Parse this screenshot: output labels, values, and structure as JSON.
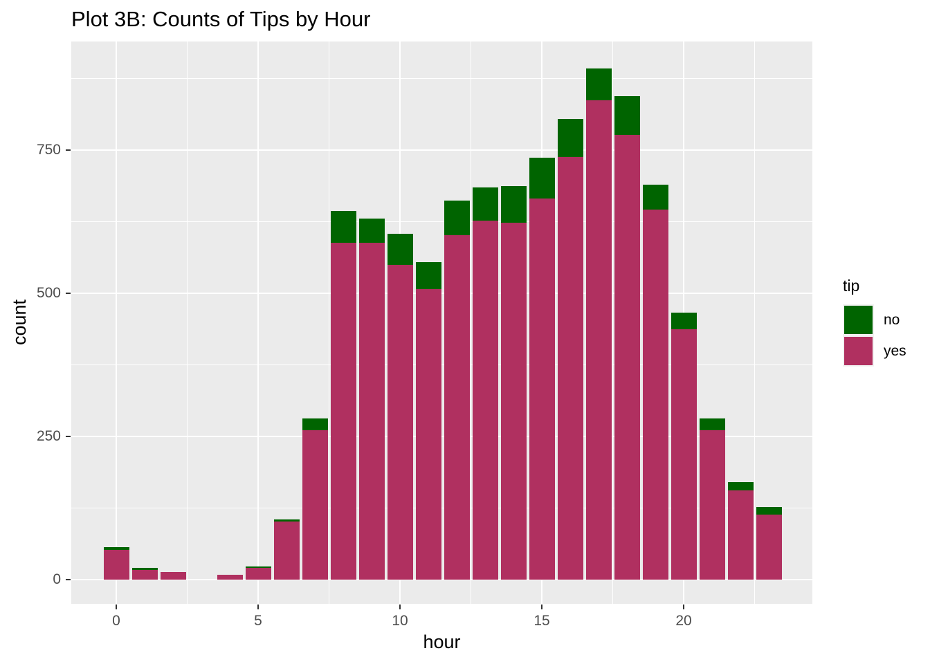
{
  "chart_data": {
    "type": "bar",
    "stacked": true,
    "title": "Plot 3B: Counts of Tips by Hour",
    "xlabel": "hour",
    "ylabel": "count",
    "categories": [
      0,
      1,
      2,
      3,
      4,
      5,
      6,
      7,
      8,
      9,
      10,
      11,
      12,
      13,
      14,
      15,
      16,
      17,
      18,
      19,
      20,
      21,
      22,
      23
    ],
    "series": [
      {
        "name": "yes",
        "color": "#B03060",
        "values": [
          52,
          17,
          13,
          0,
          8,
          21,
          101,
          261,
          588,
          588,
          549,
          507,
          602,
          627,
          623,
          666,
          738,
          837,
          776,
          646,
          437,
          261,
          156,
          114
        ]
      },
      {
        "name": "no",
        "color": "#006400",
        "values": [
          5,
          3,
          0,
          0,
          0,
          2,
          4,
          20,
          56,
          42,
          55,
          47,
          60,
          58,
          64,
          71,
          66,
          56,
          68,
          44,
          29,
          20,
          14,
          13
        ]
      }
    ],
    "totals": [
      57,
      20,
      13,
      0,
      8,
      23,
      105,
      281,
      644,
      630,
      604,
      554,
      662,
      685,
      687,
      737,
      804,
      893,
      844,
      690,
      466,
      281,
      170,
      127
    ],
    "x_ticks": [
      0,
      5,
      10,
      15,
      20
    ],
    "x_minor": [
      2.5,
      7.5,
      12.5,
      17.5,
      22.5
    ],
    "y_ticks": [
      0,
      250,
      500,
      750
    ],
    "y_minor": [
      125,
      375,
      625,
      875
    ],
    "xlim": [
      -1.65,
      24.65
    ],
    "ylim": [
      -42,
      940
    ],
    "grid": true,
    "panel_bg": "#EBEBEB",
    "grid_color": "#FFFFFF",
    "tick_label_color": "#4D4D4D",
    "legend": {
      "title": "tip",
      "position": "right",
      "entries": [
        {
          "label": "no",
          "color": "#006400"
        },
        {
          "label": "yes",
          "color": "#B03060"
        }
      ]
    }
  }
}
